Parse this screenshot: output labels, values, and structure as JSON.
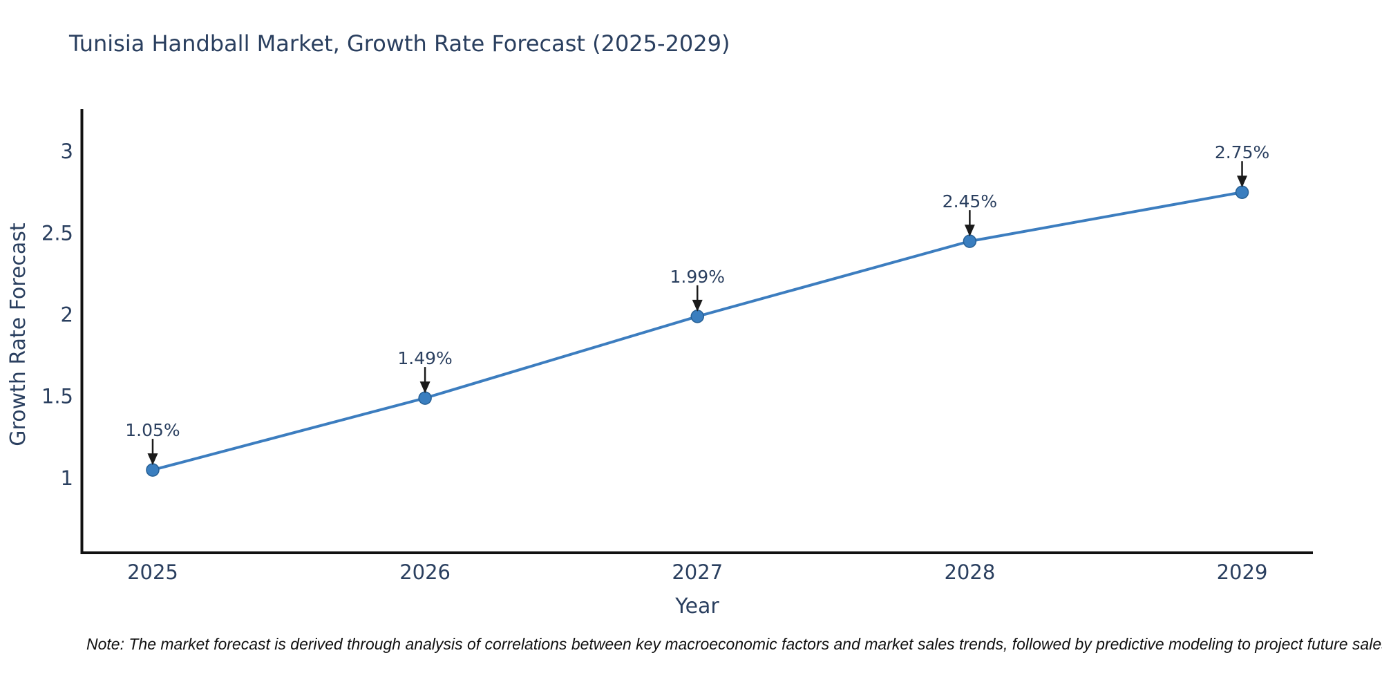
{
  "figure": {
    "title": "Tunisia Handball Market, Growth Rate Forecast (2025-2029)",
    "note": "Note: The market forecast is derived through analysis of correlations between key macroeconomic factors and market sales trends, followed by predictive modeling to project future sales."
  },
  "chart_data": {
    "type": "line",
    "title": "Tunisia Handball Market, Growth Rate Forecast (2025-2029)",
    "xlabel": "Year",
    "ylabel": "Growth Rate Forecast",
    "x": [
      2025,
      2026,
      2027,
      2028,
      2029
    ],
    "series": [
      {
        "name": "Growth Rate Forecast",
        "values": [
          1.05,
          1.49,
          1.99,
          2.45,
          2.75
        ]
      }
    ],
    "point_labels": [
      "1.05%",
      "1.49%",
      "1.99%",
      "2.45%",
      "2.75%"
    ],
    "xticks": [
      "2025",
      "2026",
      "2027",
      "2028",
      "2029"
    ],
    "yticks": [
      "1",
      "1.5",
      "2",
      "2.5",
      "3"
    ],
    "ytick_values": [
      1,
      1.5,
      2,
      2.5,
      3
    ],
    "xlim": [
      2024.74,
      2029.26
    ],
    "ylim": [
      0.543,
      3.25
    ],
    "grid": false,
    "legend_position": "none",
    "annotation_style": "down-arrow-to-point",
    "colors": {
      "line": "#3c7dbf",
      "marker": "#3a7ebf",
      "marker_edge": "#265f94",
      "axis": "#111111",
      "tick_text": "#2a3f5f",
      "annotation_text": "#2a3f5f",
      "arrow": "#1a1a1a",
      "title_text": "#2a3f5f",
      "background": "#ffffff"
    }
  }
}
